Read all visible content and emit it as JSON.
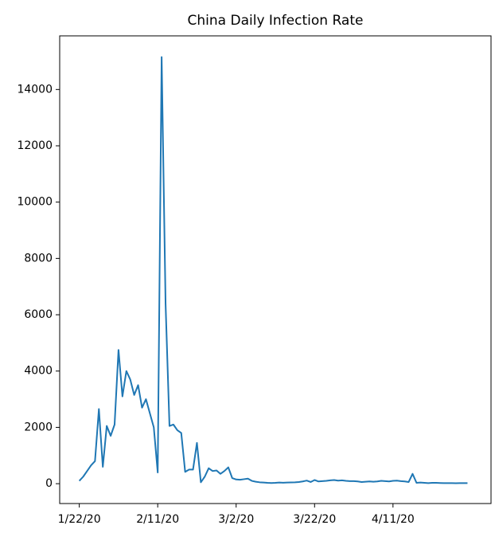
{
  "chart_data": {
    "type": "line",
    "title": "China Daily Infection Rate",
    "x": [
      "1/22/20",
      "1/23/20",
      "1/24/20",
      "1/25/20",
      "1/26/20",
      "1/27/20",
      "1/28/20",
      "1/29/20",
      "1/30/20",
      "1/31/20",
      "2/1/20",
      "2/2/20",
      "2/3/20",
      "2/4/20",
      "2/5/20",
      "2/6/20",
      "2/7/20",
      "2/8/20",
      "2/9/20",
      "2/10/20",
      "2/11/20",
      "2/12/20",
      "2/13/20",
      "2/14/20",
      "2/15/20",
      "2/16/20",
      "2/17/20",
      "2/18/20",
      "2/19/20",
      "2/20/20",
      "2/21/20",
      "2/22/20",
      "2/23/20",
      "2/24/20",
      "2/25/20",
      "2/26/20",
      "2/27/20",
      "2/28/20",
      "2/29/20",
      "3/1/20",
      "3/2/20",
      "3/3/20",
      "3/4/20",
      "3/5/20",
      "3/6/20",
      "3/7/20",
      "3/8/20",
      "3/9/20",
      "3/10/20",
      "3/11/20",
      "3/12/20",
      "3/13/20",
      "3/14/20",
      "3/15/20",
      "3/16/20",
      "3/17/20",
      "3/18/20",
      "3/19/20",
      "3/20/20",
      "3/21/20",
      "3/22/20",
      "3/23/20",
      "3/24/20",
      "3/25/20",
      "3/26/20",
      "3/27/20",
      "3/28/20",
      "3/29/20",
      "3/30/20",
      "3/31/20",
      "4/1/20",
      "4/2/20",
      "4/3/20",
      "4/4/20",
      "4/5/20",
      "4/6/20",
      "4/7/20",
      "4/8/20",
      "4/9/20",
      "4/10/20",
      "4/11/20",
      "4/12/20",
      "4/13/20",
      "4/14/20",
      "4/15/20",
      "4/16/20",
      "4/17/20",
      "4/18/20",
      "4/19/20",
      "4/20/20",
      "4/21/20",
      "4/22/20",
      "4/23/20",
      "4/24/20",
      "4/25/20",
      "4/26/20",
      "4/27/20",
      "4/28/20",
      "4/29/20",
      "4/30/20"
    ],
    "series": [
      {
        "color": "#1f77b4",
        "values": [
          100,
          250,
          450,
          650,
          800,
          2650,
          600,
          2050,
          1700,
          2100,
          4750,
          3100,
          4000,
          3700,
          3150,
          3500,
          2700,
          3000,
          2500,
          2000,
          400,
          15150,
          6400,
          2050,
          2100,
          1900,
          1800,
          420,
          500,
          500,
          1450,
          50,
          250,
          550,
          450,
          470,
          350,
          450,
          580,
          200,
          150,
          140,
          160,
          180,
          100,
          70,
          50,
          40,
          30,
          25,
          30,
          40,
          35,
          40,
          45,
          50,
          60,
          80,
          110,
          60,
          130,
          80,
          90,
          100,
          120,
          130,
          110,
          120,
          100,
          90,
          90,
          80,
          60,
          70,
          80,
          70,
          80,
          100,
          90,
          80,
          100,
          110,
          90,
          80,
          60,
          350,
          30,
          40,
          30,
          20,
          30,
          30,
          25,
          20,
          20,
          20,
          15,
          20,
          20,
          20
        ]
      }
    ],
    "xlim": [
      "1/17/20",
      "5/6/20"
    ],
    "xticks": [
      "1/22/20",
      "2/11/20",
      "3/2/20",
      "3/22/20",
      "4/11/20"
    ],
    "ylim": [
      -705,
      15905
    ],
    "yticks": [
      0,
      2000,
      4000,
      6000,
      8000,
      10000,
      12000,
      14000
    ]
  }
}
